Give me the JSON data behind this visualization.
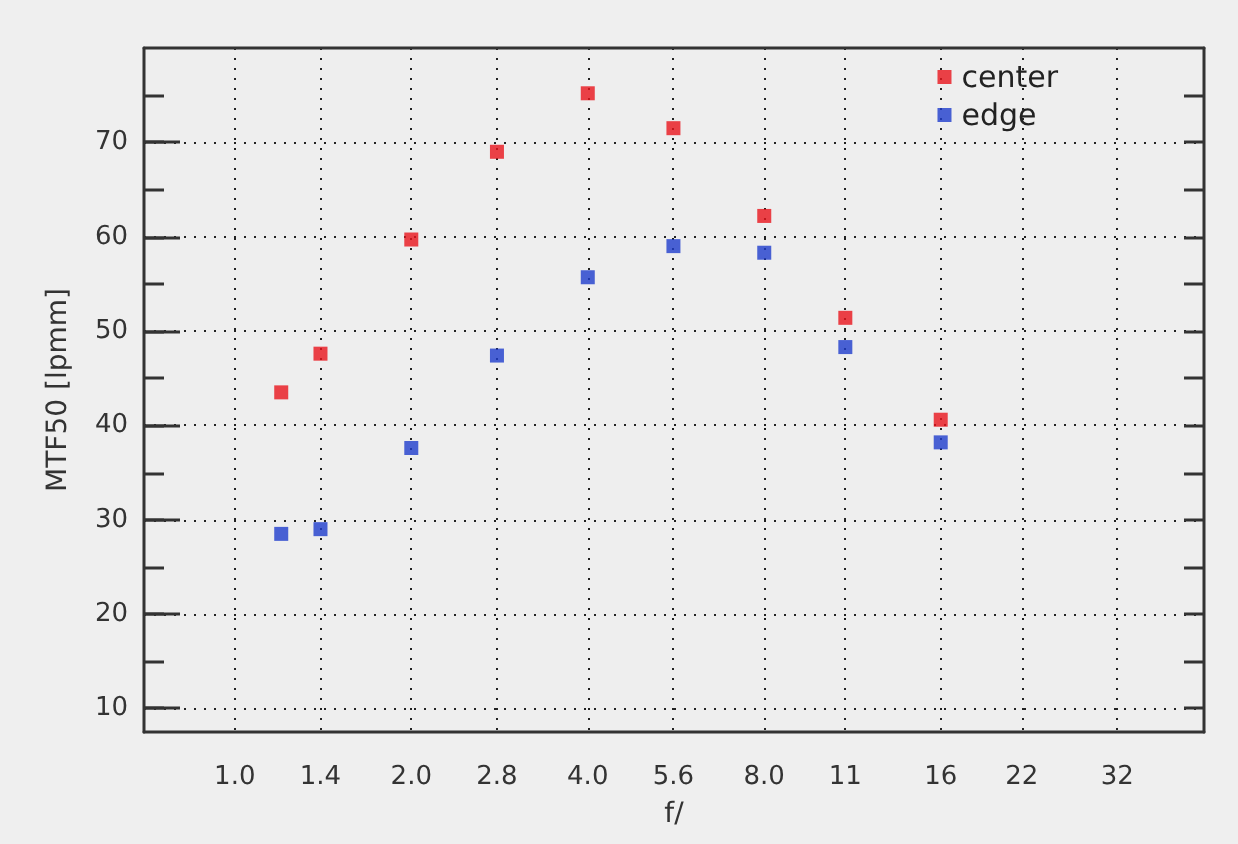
{
  "chart_data": {
    "type": "scatter",
    "xlabel": "f/",
    "ylabel": "MTF50 [lpmm]",
    "x": [
      1.2,
      1.4,
      2.0,
      2.8,
      4.0,
      5.6,
      8.0,
      11,
      16
    ],
    "series": [
      {
        "name": "center",
        "color": "#e8141c",
        "values": [
          43.5,
          47.6,
          59.7,
          69,
          75.2,
          71.5,
          62.2,
          51.4,
          40.6
        ]
      },
      {
        "name": "edge",
        "color": "#1e3ccc",
        "values": [
          28.5,
          29,
          37.6,
          47.4,
          55.7,
          59,
          58.3,
          48.3,
          38.2
        ]
      }
    ],
    "log": "x",
    "xlim": [
      0.7,
      45
    ],
    "xticks": [
      {
        "value": 1,
        "label": "1.0"
      },
      1.4,
      {
        "value": 2,
        "label": "2.0"
      },
      2.8,
      {
        "value": 4,
        "label": "4.0"
      },
      5.6,
      {
        "value": 8,
        "label": "8.0"
      },
      11,
      16,
      22,
      32
    ],
    "ylim": [
      7.5,
      80
    ],
    "yticks": [
      10,
      {
        "value": 15,
        "label": null
      },
      20,
      {
        "value": 25,
        "label": null
      },
      30,
      {
        "value": 35,
        "label": null
      },
      40,
      {
        "value": 45,
        "label": null
      },
      50,
      {
        "value": 55,
        "label": null
      },
      60,
      {
        "value": 65,
        "label": null
      },
      70,
      {
        "value": 75,
        "label": null
      }
    ],
    "grid": true,
    "legend": "top right",
    "marker": "square"
  }
}
